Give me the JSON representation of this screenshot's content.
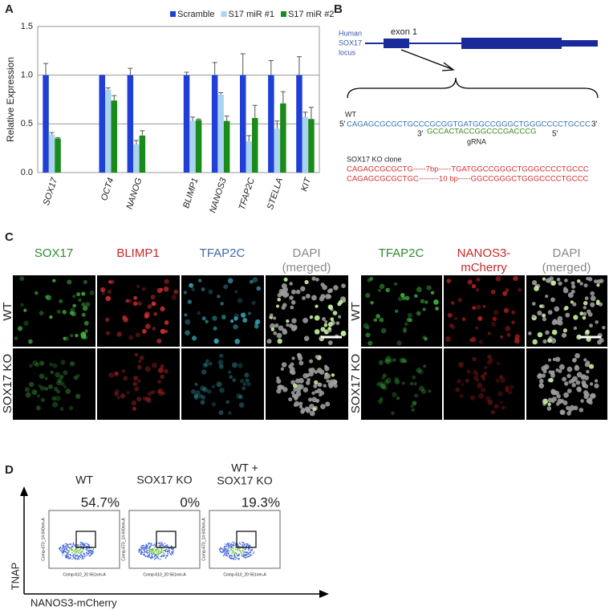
{
  "panel_labels": [
    "A",
    "B",
    "C",
    "D"
  ],
  "chart_data": {
    "type": "bar",
    "ylabel": "Relative Expression",
    "categories": [
      "SOX17",
      null,
      "OCT4",
      "NANOG",
      null,
      "BLIMP1",
      "NANOS3",
      "TFAP2C",
      "STELLA",
      "KIT"
    ],
    "series": [
      {
        "name": "Scramble",
        "color": "#1f3fd6",
        "values": [
          1.0,
          null,
          1.0,
          1.0,
          null,
          1.0,
          1.0,
          1.0,
          1.0,
          1.0
        ],
        "errors": [
          0.12,
          null,
          0.0,
          0.07,
          null,
          0.03,
          0.13,
          0.22,
          0.15,
          0.19
        ]
      },
      {
        "name": "S17 miR #1",
        "color": "#a9d3ef",
        "values": [
          0.39,
          null,
          0.85,
          0.29,
          null,
          0.53,
          0.8,
          0.32,
          0.45,
          0.57
        ],
        "errors": [
          0.02,
          null,
          0.02,
          0.04,
          null,
          0.04,
          0.02,
          0.06,
          0.08,
          0.05
        ]
      },
      {
        "name": "S17 miR #2",
        "color": "#1a8a1a",
        "values": [
          0.35,
          null,
          0.74,
          0.38,
          null,
          0.54,
          0.53,
          0.56,
          0.71,
          0.55
        ],
        "errors": [
          0.01,
          null,
          0.05,
          0.05,
          null,
          0.01,
          0.05,
          0.13,
          0.12,
          0.12
        ]
      }
    ],
    "ylim": [
      0,
      1.5
    ],
    "yticks": [
      {
        "value": 0,
        "label": "0.0"
      },
      {
        "value": 0.5,
        "label": "0.5"
      },
      {
        "value": 1,
        "label": "1.0"
      },
      {
        "value": 1.5,
        "label": "1.5"
      }
    ],
    "grid": true
  },
  "panel_b": {
    "locus": [
      "Human",
      "SOX17",
      "locus"
    ],
    "exon": "exon 1",
    "wt": "WT",
    "five": "5'",
    "three": "3'",
    "wt_seq": "CAGAGCGCGCTGCCCGCGGTGATGGCCGGGCTGGGCCCCTGCCC",
    "grna_seq": "GCCACTACCGGCCCGACCCG",
    "grna": "gRNA",
    "ko_title": "SOX17 KO clone",
    "ko_seq": [
      "CAGAGCGCGCTG-----7bp-----TGATGGCCGGGCTGGGCCCCTGCCC",
      "CAGAGCGCGCTGC--------10 bp-----GGCCGGGCTGGGCCCCTGCCC"
    ]
  },
  "panel_c": {
    "left_headers": [
      "SOX17",
      "BLIMP1",
      "TFAP2C"
    ],
    "right_headers": [
      "TFAP2C",
      "NANOS3-",
      "mCherry"
    ],
    "dapi": [
      "DAPI",
      "(merged)"
    ],
    "rows": [
      "WT",
      "SOX17 KO"
    ]
  },
  "panel_d": {
    "titles": [
      "WT",
      "SOX17 KO",
      "WT +",
      "SOX17 KO"
    ],
    "percents": [
      "54.7%",
      "0%",
      "19.3%"
    ],
    "y_axis": "TNAP",
    "x_axis": "NANOS3-mCherry",
    "plot_x": "Comp-610_20 561nm-A",
    "plot_y": "Comp-670_14 640nm-A"
  }
}
